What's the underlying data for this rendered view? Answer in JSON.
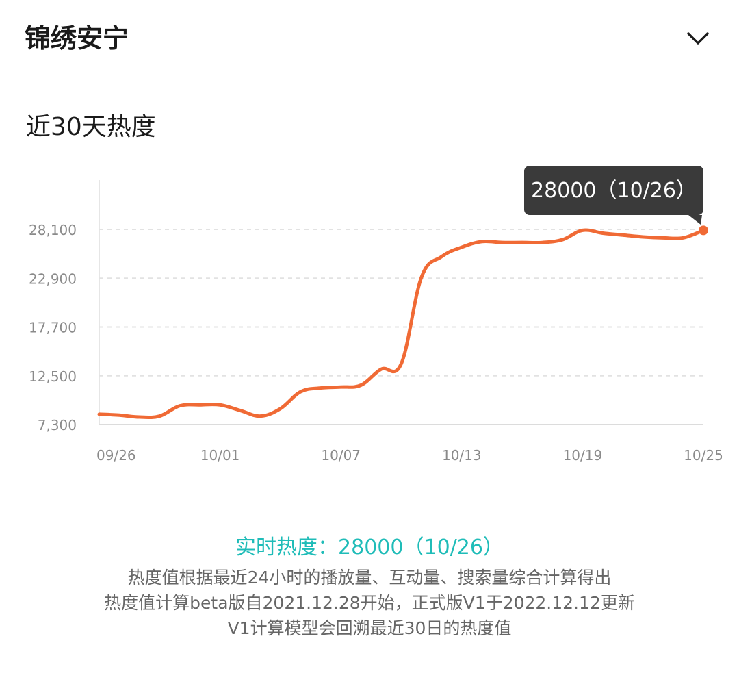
{
  "header": {
    "title": "锦绣安宁",
    "toggle_icon": "chevron-down-icon"
  },
  "section": {
    "title": "近30天热度"
  },
  "tooltip": {
    "text": "28000（10/26）"
  },
  "footer": {
    "realtime": "实时热度：28000（10/26）",
    "notes": [
      "热度值根据最近24小时的播放量、互动量、搜索量综合计算得出",
      "热度值计算beta版自2021.12.28开始，正式版V1于2022.12.12更新",
      "V1计算模型会回溯最近30日的热度值"
    ]
  },
  "colors": {
    "line": "#f06a35",
    "accent_text": "#1fbcb8",
    "tooltip_bg": "#3a3a3a",
    "grid": "#e2e2e2",
    "axis_text": "#8a8a8a"
  },
  "chart_data": {
    "type": "line",
    "title": "",
    "xlabel": "",
    "ylabel": "",
    "x_ticks": [
      "09/26",
      "10/01",
      "10/07",
      "10/13",
      "10/19",
      "10/25"
    ],
    "y_ticks": [
      7300,
      12500,
      17700,
      22900,
      28100
    ],
    "y_tick_labels": [
      "7,300",
      "12,500",
      "17,700",
      "22,900",
      "28,100"
    ],
    "ylim": [
      7300,
      28100
    ],
    "grid": true,
    "x": [
      "09/26",
      "09/27",
      "09/28",
      "09/29",
      "09/30",
      "10/01",
      "10/02",
      "10/03",
      "10/04",
      "10/05",
      "10/06",
      "10/07",
      "10/08",
      "10/09",
      "10/10",
      "10/11",
      "10/12",
      "10/13",
      "10/14",
      "10/15",
      "10/16",
      "10/17",
      "10/18",
      "10/19",
      "10/20",
      "10/21",
      "10/22",
      "10/23",
      "10/24",
      "10/25",
      "10/26"
    ],
    "values": [
      8400,
      8300,
      8100,
      8200,
      9300,
      9400,
      9400,
      8800,
      8200,
      9000,
      10800,
      11200,
      11300,
      11500,
      13200,
      13800,
      23000,
      25200,
      26200,
      26800,
      26700,
      26700,
      26700,
      27000,
      28000,
      27700,
      27500,
      27300,
      27200,
      27200,
      28000
    ],
    "highlight": {
      "x": "10/26",
      "value": 28000
    }
  }
}
